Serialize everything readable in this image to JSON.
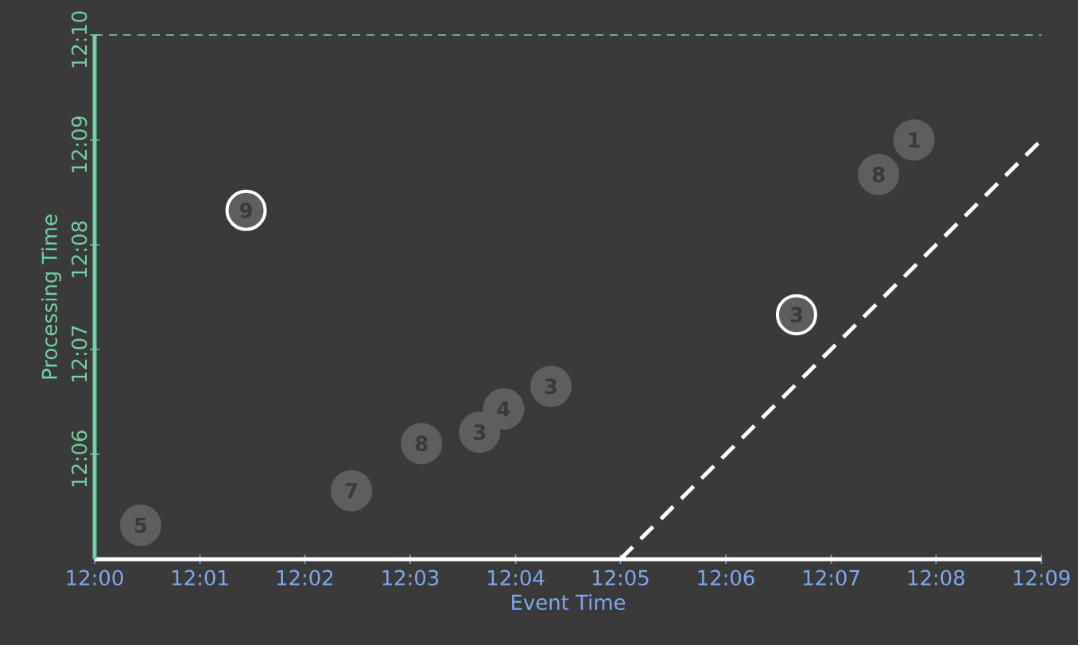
{
  "chart_data": {
    "type": "scatter",
    "xlabel": "Event Time",
    "ylabel": "Processing Time",
    "xlim": [
      12,
      12.15
    ],
    "ylim": [
      12.0833,
      12.1667
    ],
    "xticks": [
      {
        "value": 12,
        "label": "12:00"
      },
      {
        "value": 12.0167,
        "label": "12:01"
      },
      {
        "value": 12.0333,
        "label": "12:02"
      },
      {
        "value": 12.05,
        "label": "12:03"
      },
      {
        "value": 12.0667,
        "label": "12:04"
      },
      {
        "value": 12.0833,
        "label": "12:05"
      },
      {
        "value": 12.1,
        "label": "12:06"
      },
      {
        "value": 12.1167,
        "label": "12:07"
      },
      {
        "value": 12.1333,
        "label": "12:08"
      },
      {
        "value": 12.15,
        "label": "12:09"
      }
    ],
    "yticks": [
      {
        "value": 12.1,
        "label": "12:06"
      },
      {
        "value": 12.1167,
        "label": "12:07"
      },
      {
        "value": 12.1333,
        "label": "12:08"
      },
      {
        "value": 12.15,
        "label": "12:09"
      },
      {
        "value": 12.1667,
        "label": "12:10"
      }
    ],
    "series": [
      {
        "color": "#5e5e5e",
        "x": [
          12.0073,
          12.0407,
          12.0518,
          12.061,
          12.0648,
          12.0723,
          12.1242,
          12.1298
        ],
        "values": [
          12.0887,
          12.0942,
          12.1017,
          12.1035,
          12.1072,
          12.1108,
          12.1445,
          12.15
        ]
      },
      {
        "color": "#ffffff",
        "x": [
          12.024,
          12.1112
        ],
        "values": [
          12.1388,
          12.1222
        ]
      },
      {
        "type": "line",
        "color": "#ffffff",
        "line_style": "dashed",
        "marker": "none",
        "x": [
          12.0833,
          12.15
        ],
        "values": [
          12.0833,
          12.15
        ]
      }
    ],
    "ref_lines": [
      {
        "axis": "y",
        "value": 12.1667,
        "color": "#73cf9f",
        "line_style": "dashed"
      }
    ],
    "annotations": [
      {
        "text": "5",
        "x": 12.0073,
        "y": 12.0887
      },
      {
        "text": "9",
        "x": 12.024,
        "y": 12.1388
      },
      {
        "text": "7",
        "x": 12.0407,
        "y": 12.0942
      },
      {
        "text": "8",
        "x": 12.0518,
        "y": 12.1017
      },
      {
        "text": "3",
        "x": 12.061,
        "y": 12.1035
      },
      {
        "text": "4",
        "x": 12.0648,
        "y": 12.1072
      },
      {
        "text": "3",
        "x": 12.0723,
        "y": 12.1108
      },
      {
        "text": "3",
        "x": 12.1112,
        "y": 12.1222
      },
      {
        "text": "8",
        "x": 12.1242,
        "y": 12.1445
      },
      {
        "text": "1",
        "x": 12.1298,
        "y": 12.15
      }
    ]
  }
}
